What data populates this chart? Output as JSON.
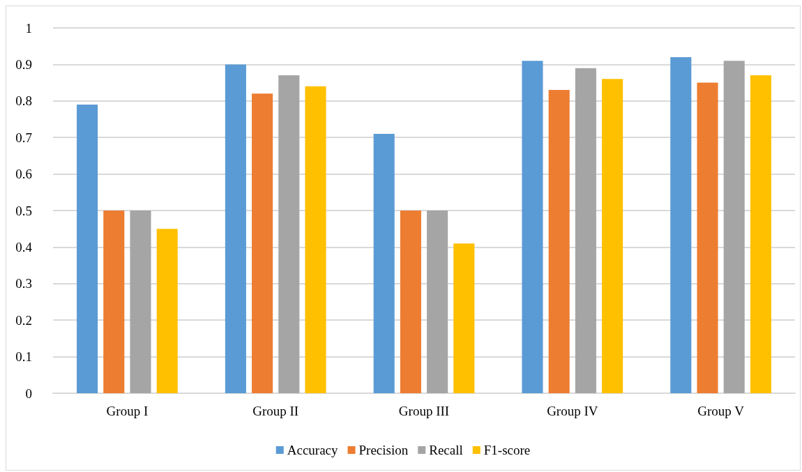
{
  "chart_data": {
    "type": "bar",
    "categories": [
      "Group I",
      "Group II",
      "Group III",
      "Group IV",
      "Group V"
    ],
    "series": [
      {
        "name": "Accuracy",
        "color": "#5b9bd5",
        "values": [
          0.79,
          0.9,
          0.71,
          0.91,
          0.92
        ]
      },
      {
        "name": "Precision",
        "color": "#ed7d31",
        "values": [
          0.5,
          0.82,
          0.5,
          0.83,
          0.85
        ]
      },
      {
        "name": "Recall",
        "color": "#a5a5a5",
        "values": [
          0.5,
          0.87,
          0.5,
          0.89,
          0.91
        ]
      },
      {
        "name": "F1-score",
        "color": "#ffc000",
        "values": [
          0.45,
          0.84,
          0.41,
          0.86,
          0.87
        ]
      }
    ],
    "ylim": [
      0,
      1
    ],
    "yticks": [
      0,
      0.1,
      0.2,
      0.3,
      0.4,
      0.5,
      0.6,
      0.7,
      0.8,
      0.9,
      1
    ],
    "grid": "y",
    "legend": "bottom"
  }
}
